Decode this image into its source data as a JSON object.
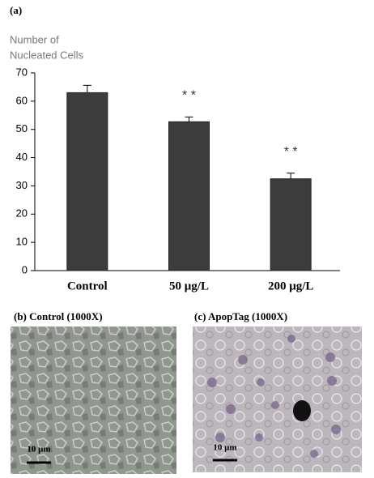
{
  "panel_label": "(a)",
  "chart_data": {
    "type": "bar",
    "ylabel": [
      "Number of",
      "Nucleated Cells"
    ],
    "categories": [
      "Control",
      "50 μg/L",
      "200 μg/L"
    ],
    "values": [
      63,
      52.7,
      32.5
    ],
    "errors": [
      2.6,
      1.7,
      2.0
    ],
    "color": "#3c3c3c",
    "ylim": [
      0,
      70
    ],
    "yticks": [
      0,
      10,
      20,
      30,
      40,
      50,
      60,
      70
    ],
    "annotations": [
      "* *",
      "* *"
    ]
  },
  "panels": [
    {
      "caption": "(b) Control (1000X)",
      "scale": "10 μm"
    },
    {
      "caption": "(c) ApopTag (1000X)",
      "scale": "10 μm"
    }
  ]
}
